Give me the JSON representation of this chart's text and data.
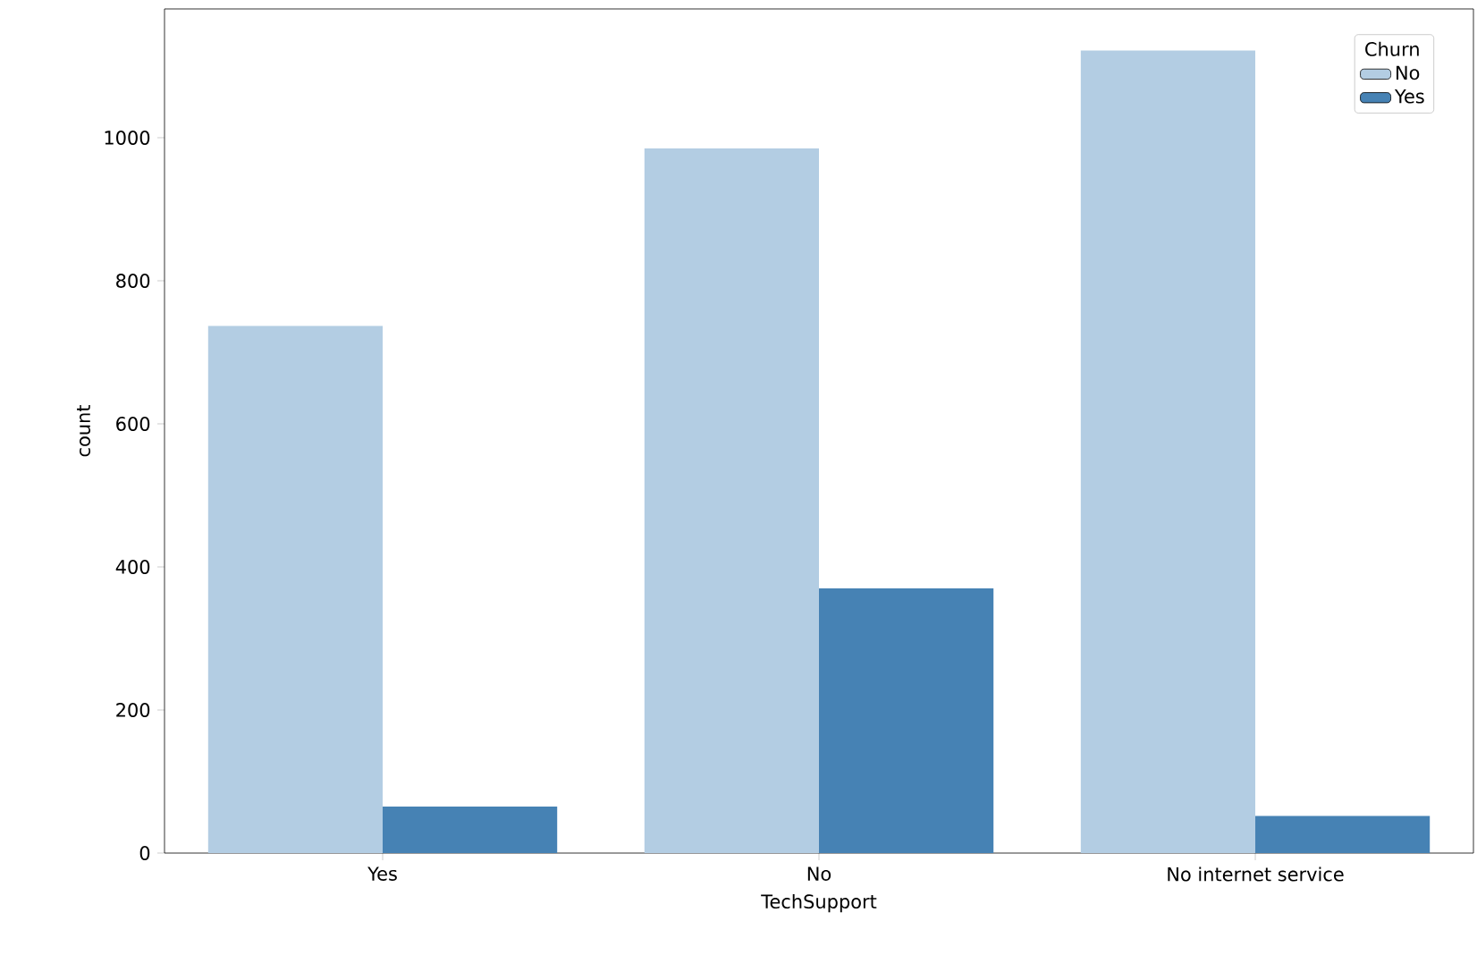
{
  "chart_data": {
    "type": "bar",
    "xlabel": "TechSupport",
    "ylabel": "count",
    "legend_title": "Churn",
    "categories": [
      "Yes",
      "No",
      "No internet service"
    ],
    "series": [
      {
        "name": "No",
        "color": "#b3cde3",
        "values": [
          737,
          985,
          1122
        ]
      },
      {
        "name": "Yes",
        "color": "#4682b4",
        "values": [
          65,
          370,
          52
        ]
      }
    ],
    "ylim": [
      0,
      1180
    ],
    "yticks": [
      0,
      200,
      400,
      600,
      800,
      1000
    ],
    "grid": false,
    "legend": "top right"
  }
}
